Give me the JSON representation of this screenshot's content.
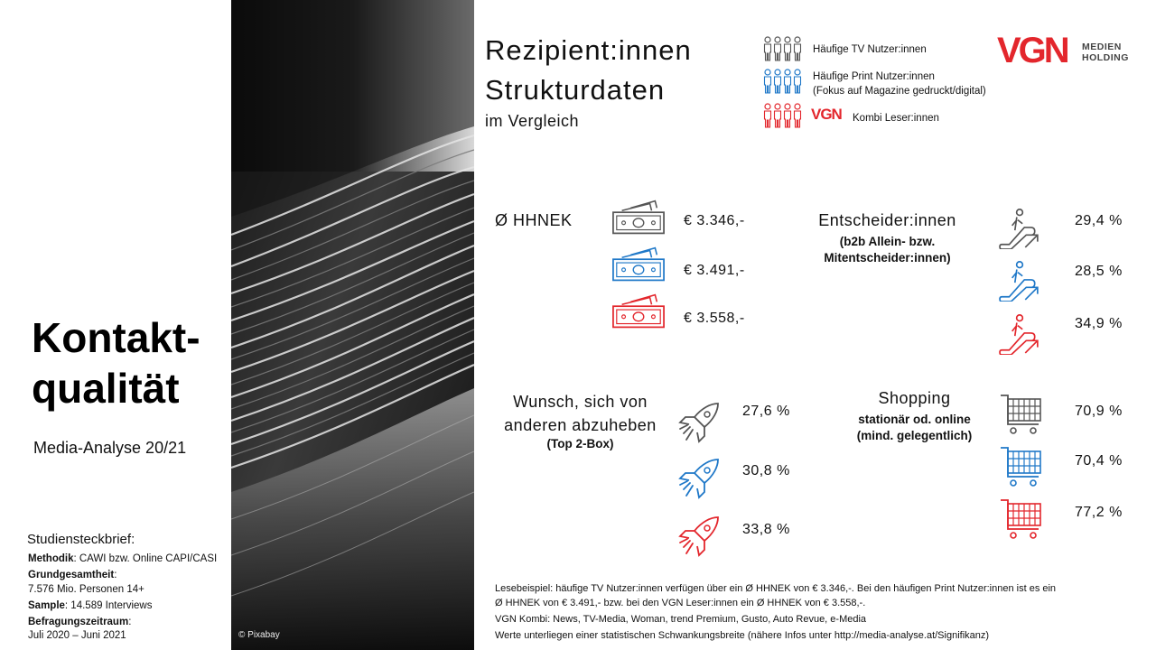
{
  "left": {
    "title_line1": "Kontakt-",
    "title_line2": "qualität",
    "subtitle": "Media-Analyse 20/21",
    "study": {
      "heading": "Studiensteckbrief:",
      "methodik_label": "Methodik",
      "methodik_value": ": CAWI bzw. Online CAPI/CASI",
      "grundgesamtheit_label": "Grundgesamtheit",
      "grundgesamtheit_colon": ":",
      "grundgesamtheit_value": "7.576 Mio. Personen 14+",
      "sample_label": "Sample",
      "sample_value": ": 14.589 Interviews",
      "zeitraum_label": "Befragungszeitraum",
      "zeitraum_colon": ":",
      "zeitraum_value": "Juli 2020 – Juni 2021"
    }
  },
  "photo": {
    "credit": "© Pixabay"
  },
  "header": {
    "title_line1": "Rezipient:innen",
    "title_line2": "Strukturdaten",
    "subtitle": "im Vergleich"
  },
  "legend": {
    "tv": "Häufige TV Nutzer:innen",
    "print_line1": "Häufige Print Nutzer:innen",
    "print_line2": "(Fokus auf Magazine gedruckt/digital)",
    "vgn_mark": "VGN",
    "kombi": "Kombi Leser:innen"
  },
  "logo": {
    "mark": "VGN",
    "line1": "MEDIEN",
    "line2": "HOLDING"
  },
  "colors": {
    "tv": "#555555",
    "print": "#1f78c8",
    "vgn": "#e3262c"
  },
  "sections": {
    "hhnek": {
      "title": "Ø HHNEK",
      "values": [
        "€ 3.346,-",
        "€ 3.491,-",
        "€ 3.558,-"
      ]
    },
    "entscheider": {
      "title": "Entscheider:innen",
      "sub_line1": "(b2b Allein- bzw.",
      "sub_line2": "Mitentscheider:innen)",
      "values": [
        "29,4 %",
        "28,5 %",
        "34,9 %"
      ]
    },
    "wunsch": {
      "title_line1": "Wunsch, sich von",
      "title_line2": "anderen abzuheben",
      "sub": "(Top 2-Box)",
      "values": [
        "27,6 %",
        "30,8 %",
        "33,8 %"
      ]
    },
    "shopping": {
      "title": "Shopping",
      "sub_line1": "stationär od. online",
      "sub_line2": "(mind. gelegentlich)",
      "values": [
        "70,9 %",
        "70,4 %",
        "77,2 %"
      ]
    }
  },
  "notes": {
    "line1": "Lesebeispiel: häufige TV Nutzer:innen verfügen über ein Ø HHNEK von € 3.346,-. Bei den häufigen Print Nutzer:innen ist es ein",
    "line2": "Ø HHNEK von € 3.491,- bzw. bei den VGN Leser:innen ein Ø HHNEK von € 3.558,-.",
    "line3": "VGN Kombi: News, TV-Media, Woman, trend Premium, Gusto, Auto Revue, e-Media",
    "line4": "Werte unterliegen einer statistischen Schwankungsbreite (nähere Infos unter http://media-analyse.at/Signifikanz)"
  }
}
